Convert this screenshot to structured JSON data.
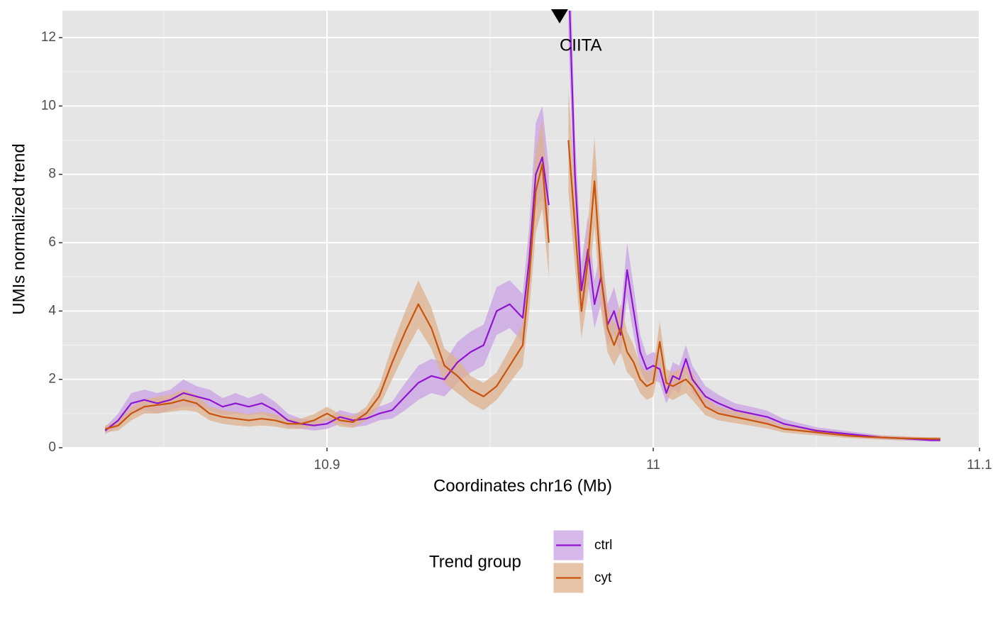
{
  "chart_data": {
    "type": "line",
    "x_label": "Coordinates chr16 (Mb)",
    "y_label": "UMIs normalized trend",
    "x": [
      10.832,
      10.836,
      10.84,
      10.844,
      10.848,
      10.852,
      10.856,
      10.86,
      10.864,
      10.868,
      10.872,
      10.876,
      10.88,
      10.884,
      10.888,
      10.892,
      10.896,
      10.9,
      10.904,
      10.908,
      10.912,
      10.916,
      10.92,
      10.924,
      10.928,
      10.932,
      10.936,
      10.94,
      10.944,
      10.948,
      10.952,
      10.956,
      10.96,
      10.962,
      10.964,
      10.966,
      10.968,
      10.97,
      10.972,
      10.974,
      10.976,
      10.978,
      10.98,
      10.982,
      10.984,
      10.986,
      10.988,
      10.99,
      10.992,
      10.994,
      10.996,
      10.998,
      11.0,
      11.002,
      11.004,
      11.006,
      11.008,
      11.01,
      11.012,
      11.016,
      11.02,
      11.025,
      11.03,
      11.035,
      11.04,
      11.045,
      11.05,
      11.055,
      11.06,
      11.065,
      11.07,
      11.075,
      11.08,
      11.085,
      11.088
    ],
    "series": [
      {
        "name": "ctrl",
        "color": "#9013d0",
        "band_color": "#c9a0e4",
        "values": [
          0.5,
          0.8,
          1.3,
          1.4,
          1.3,
          1.4,
          1.6,
          1.5,
          1.4,
          1.2,
          1.3,
          1.2,
          1.3,
          1.1,
          0.8,
          0.7,
          0.65,
          0.7,
          0.9,
          0.8,
          0.85,
          1.0,
          1.1,
          1.5,
          1.9,
          2.1,
          2.0,
          2.5,
          2.8,
          3.0,
          4.0,
          4.2,
          3.8,
          5.5,
          8.0,
          8.5,
          7.1,
          null,
          null,
          14,
          8.0,
          4.6,
          5.8,
          4.2,
          5.0,
          3.6,
          4.0,
          3.3,
          5.2,
          4.0,
          2.8,
          2.3,
          2.4,
          2.3,
          1.6,
          2.1,
          2.0,
          2.6,
          2.0,
          1.5,
          1.3,
          1.1,
          1.0,
          0.9,
          0.7,
          0.6,
          0.5,
          0.45,
          0.4,
          0.35,
          0.3,
          0.28,
          0.25,
          0.22,
          0.22
        ],
        "lower": [
          0.4,
          0.6,
          1.0,
          1.1,
          1.0,
          1.1,
          1.2,
          1.2,
          1.1,
          0.95,
          1.0,
          0.95,
          1.0,
          0.85,
          0.6,
          0.55,
          0.5,
          0.55,
          0.7,
          0.6,
          0.65,
          0.8,
          0.85,
          1.1,
          1.4,
          1.6,
          1.5,
          1.9,
          2.2,
          2.4,
          3.3,
          3.5,
          3.1,
          4.5,
          7.0,
          7.3,
          6.0,
          null,
          null,
          12,
          6.8,
          3.8,
          4.8,
          3.5,
          4.2,
          3.0,
          3.3,
          2.7,
          4.4,
          3.3,
          2.3,
          1.9,
          2.0,
          1.9,
          1.3,
          1.7,
          1.6,
          2.2,
          1.6,
          1.2,
          1.05,
          0.9,
          0.8,
          0.72,
          0.56,
          0.48,
          0.4,
          0.36,
          0.32,
          0.28,
          0.24,
          0.22,
          0.2,
          0.18,
          0.18
        ],
        "upper": [
          0.6,
          1.0,
          1.6,
          1.7,
          1.6,
          1.7,
          2.0,
          1.8,
          1.7,
          1.45,
          1.6,
          1.45,
          1.6,
          1.35,
          1.0,
          0.85,
          0.8,
          0.85,
          1.1,
          1.0,
          1.05,
          1.2,
          1.35,
          1.9,
          2.4,
          2.6,
          2.5,
          3.1,
          3.4,
          3.6,
          4.7,
          4.9,
          4.5,
          6.5,
          9.5,
          10.0,
          8.2,
          null,
          null,
          16,
          9.2,
          5.4,
          6.8,
          4.9,
          5.8,
          4.2,
          4.7,
          3.9,
          6.0,
          4.7,
          3.3,
          2.7,
          2.8,
          2.7,
          1.9,
          2.5,
          2.4,
          3.0,
          2.4,
          1.8,
          1.55,
          1.3,
          1.2,
          1.08,
          0.84,
          0.72,
          0.6,
          0.54,
          0.48,
          0.42,
          0.36,
          0.34,
          0.3,
          0.26,
          0.26
        ]
      },
      {
        "name": "cyt",
        "color": "#c8530a",
        "band_color": "#ddb08e",
        "values": [
          0.55,
          0.65,
          1.0,
          1.2,
          1.25,
          1.3,
          1.4,
          1.3,
          1.0,
          0.9,
          0.85,
          0.8,
          0.85,
          0.8,
          0.7,
          0.7,
          0.8,
          1.0,
          0.8,
          0.75,
          1.0,
          1.5,
          2.5,
          3.4,
          4.2,
          3.5,
          2.4,
          2.1,
          1.7,
          1.5,
          1.8,
          2.4,
          3.0,
          5.0,
          7.5,
          8.3,
          6.0,
          null,
          null,
          9.0,
          6.5,
          4.0,
          5.5,
          7.8,
          5.0,
          3.5,
          3.0,
          3.5,
          2.8,
          2.5,
          2.0,
          1.8,
          1.9,
          3.1,
          1.9,
          1.8,
          1.9,
          2.0,
          1.8,
          1.2,
          1.0,
          0.9,
          0.8,
          0.7,
          0.55,
          0.5,
          0.45,
          0.4,
          0.35,
          0.32,
          0.3,
          0.28,
          0.27,
          0.26,
          0.26
        ],
        "lower": [
          0.45,
          0.5,
          0.8,
          1.0,
          1.0,
          1.05,
          1.1,
          1.05,
          0.8,
          0.7,
          0.65,
          0.62,
          0.65,
          0.62,
          0.55,
          0.55,
          0.62,
          0.8,
          0.62,
          0.58,
          0.8,
          1.2,
          2.0,
          2.8,
          3.5,
          2.9,
          1.9,
          1.6,
          1.3,
          1.1,
          1.4,
          1.9,
          2.4,
          4.0,
          6.3,
          7.0,
          5.0,
          null,
          null,
          7.5,
          5.3,
          3.2,
          4.5,
          6.5,
          4.0,
          2.8,
          2.4,
          2.8,
          2.2,
          2.0,
          1.6,
          1.4,
          1.5,
          2.5,
          1.5,
          1.4,
          1.5,
          1.6,
          1.4,
          0.95,
          0.8,
          0.72,
          0.64,
          0.56,
          0.44,
          0.4,
          0.36,
          0.32,
          0.28,
          0.26,
          0.24,
          0.22,
          0.22,
          0.21,
          0.21
        ],
        "upper": [
          0.65,
          0.8,
          1.2,
          1.4,
          1.5,
          1.55,
          1.7,
          1.55,
          1.2,
          1.1,
          1.05,
          0.98,
          1.05,
          0.98,
          0.85,
          0.85,
          0.98,
          1.2,
          0.98,
          0.92,
          1.2,
          1.8,
          3.0,
          4.0,
          4.9,
          4.1,
          2.9,
          2.6,
          2.1,
          1.9,
          2.2,
          2.9,
          3.6,
          6.0,
          8.7,
          9.6,
          7.0,
          null,
          null,
          10.5,
          7.7,
          4.8,
          6.5,
          9.1,
          6.0,
          4.2,
          3.6,
          4.2,
          3.4,
          3.0,
          2.4,
          2.2,
          2.3,
          3.7,
          2.3,
          2.2,
          2.3,
          2.4,
          2.2,
          1.45,
          1.2,
          1.08,
          0.96,
          0.84,
          0.66,
          0.6,
          0.54,
          0.48,
          0.42,
          0.38,
          0.36,
          0.34,
          0.32,
          0.31,
          0.31
        ]
      }
    ],
    "xlim": [
      10.8189,
      11.0998
    ],
    "xticks": [
      10.9,
      11,
      11.1
    ],
    "xminor": [
      10.85,
      10.95,
      11.05
    ],
    "ylim": [
      0,
      12.79
    ],
    "yticks": [
      0,
      2,
      4,
      6,
      8,
      10,
      12
    ],
    "yminor": [
      1,
      3,
      5,
      7,
      9,
      11
    ],
    "grid": true,
    "annotation": {
      "text": "CIITA",
      "x": 10.9713,
      "y": 11.75
    },
    "legend_title": "Trend group",
    "legend_position": "bottom"
  }
}
